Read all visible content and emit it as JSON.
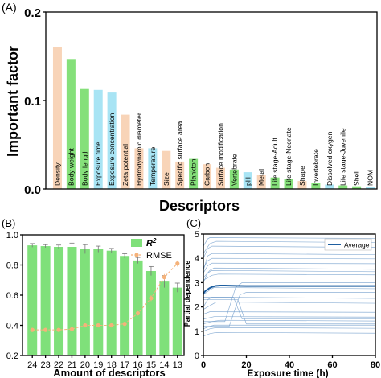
{
  "chart_data": [
    {
      "panel": "(A)",
      "type": "bar",
      "ylabel": "Important factor",
      "xlabel": "Descriptors",
      "ylim": [
        0,
        0.2
      ],
      "yticks": [
        "0.0",
        "0.1",
        "0.2"
      ],
      "categories": [
        "Density",
        "Body weight",
        "Body length",
        "Exposure time",
        "Exposure concentration",
        "Zeta potential",
        "Hydrodynamic diameter",
        "Temperature",
        "Size",
        "Specific surface area",
        "Plankton",
        "Carbon",
        "Surface modification",
        "Vertebrate",
        "pH",
        "Metal",
        "Life stage-Adult",
        "Life stage-Neonate",
        "Shape",
        "Invertebrate",
        "Dissolved oxygen",
        "Life stage-Juvenile",
        "Shell",
        "NOM"
      ],
      "values": [
        0.16,
        0.147,
        0.113,
        0.112,
        0.109,
        0.084,
        0.046,
        0.046,
        0.043,
        0.031,
        0.034,
        0.028,
        0.024,
        0.022,
        0.019,
        0.016,
        0.013,
        0.011,
        0.009,
        0.007,
        0.005,
        0.004,
        0.003,
        0.002
      ],
      "colors": [
        "#f8d4b8",
        "#85e07a",
        "#85e07a",
        "#a8e4f4",
        "#a8e4f4",
        "#f8d4b8",
        "#f8d4b8",
        "#a8e4f4",
        "#f8d4b8",
        "#f8d4b8",
        "#85e07a",
        "#f8d4b8",
        "#f8d4b8",
        "#85e07a",
        "#a8e4f4",
        "#f8d4b8",
        "#85e07a",
        "#85e07a",
        "#f8d4b8",
        "#85e07a",
        "#a8e4f4",
        "#85e07a",
        "#85e07a",
        "#a8e4f4"
      ]
    },
    {
      "panel": "(B)",
      "type": "bar",
      "xlabel": "Amount of descriptors",
      "ylabel": "",
      "ylim": [
        0.2,
        1.0
      ],
      "yticks": [
        "0.2",
        "0.4",
        "0.6",
        "0.8",
        "1.0"
      ],
      "categories": [
        "24",
        "23",
        "22",
        "21",
        "20",
        "19",
        "18",
        "17",
        "16",
        "15",
        "14",
        "13"
      ],
      "series": [
        {
          "name": "R",
          "name_sup": "2",
          "type": "bar",
          "color": "#7fe07a",
          "values": [
            0.93,
            0.925,
            0.92,
            0.92,
            0.905,
            0.905,
            0.895,
            0.86,
            0.83,
            0.76,
            0.69,
            0.65
          ],
          "errors": [
            0.012,
            0.01,
            0.012,
            0.025,
            0.03,
            0.02,
            0.015,
            0.015,
            0.02,
            0.03,
            0.04,
            0.03
          ]
        },
        {
          "name": "RMSE",
          "type": "line",
          "color": "#f5b27a",
          "values": [
            0.37,
            0.37,
            0.37,
            0.375,
            0.4,
            0.4,
            0.4,
            0.41,
            0.48,
            0.58,
            0.72,
            0.81
          ],
          "errors": [
            0.01,
            0.01,
            0.01,
            0.01,
            0.01,
            0.01,
            0.01,
            0.01,
            0.015,
            0.02,
            0.02,
            0.02
          ]
        }
      ],
      "legend": "top-right"
    },
    {
      "panel": "(C)",
      "type": "line",
      "xlabel": "Exposure time (h)",
      "ylabel": "Partial dependence",
      "xlim": [
        0,
        80
      ],
      "ylim": [
        0,
        5
      ],
      "xticks": [
        "0",
        "20",
        "40",
        "60",
        "80"
      ],
      "yticks": [
        "0",
        "1",
        "2",
        "3",
        "4",
        "5"
      ],
      "legend_label": "Average",
      "average_color": "#1f5fa0",
      "lines_color": "#7aa3cf",
      "series": [
        {
          "x": [
            0,
            3,
            5,
            80
          ],
          "y": [
            1.1,
            1.2,
            1.25,
            1.25
          ]
        },
        {
          "x": [
            0,
            4,
            8,
            80
          ],
          "y": [
            1.3,
            1.4,
            1.45,
            1.42
          ]
        },
        {
          "x": [
            0,
            3,
            6,
            80
          ],
          "y": [
            0.8,
            0.9,
            0.95,
            0.92
          ]
        },
        {
          "x": [
            0,
            5,
            10,
            80
          ],
          "y": [
            1.5,
            1.6,
            1.6,
            1.58
          ]
        },
        {
          "x": [
            0,
            3,
            5,
            80
          ],
          "y": [
            1.7,
            1.8,
            1.8,
            1.78
          ]
        },
        {
          "x": [
            0,
            2,
            4,
            80
          ],
          "y": [
            3.0,
            3.4,
            3.5,
            3.45
          ]
        },
        {
          "x": [
            0,
            3,
            5,
            80
          ],
          "y": [
            3.2,
            3.5,
            3.6,
            3.55
          ]
        },
        {
          "x": [
            0,
            2,
            4,
            80
          ],
          "y": [
            3.4,
            3.7,
            3.8,
            3.78
          ]
        },
        {
          "x": [
            0,
            2,
            4,
            80
          ],
          "y": [
            3.6,
            3.9,
            4.0,
            3.98
          ]
        },
        {
          "x": [
            0,
            2,
            4,
            80
          ],
          "y": [
            3.5,
            4.1,
            4.2,
            4.15
          ]
        },
        {
          "x": [
            0,
            3,
            5,
            80
          ],
          "y": [
            2.5,
            2.7,
            2.8,
            2.75
          ]
        },
        {
          "x": [
            0,
            2,
            4,
            80
          ],
          "y": [
            2.0,
            2.3,
            2.4,
            2.35
          ]
        },
        {
          "x": [
            0,
            4,
            6,
            80
          ],
          "y": [
            1.9,
            2.1,
            2.2,
            2.15
          ]
        },
        {
          "x": [
            0,
            2,
            4,
            80
          ],
          "y": [
            4.0,
            4.4,
            4.5,
            4.45
          ]
        },
        {
          "x": [
            0,
            3,
            6,
            80
          ],
          "y": [
            4.2,
            4.6,
            4.7,
            4.65
          ]
        },
        {
          "x": [
            0,
            2,
            3,
            80
          ],
          "y": [
            4.5,
            4.8,
            4.85,
            4.82
          ]
        },
        {
          "x": [
            0,
            10,
            15,
            18,
            80
          ],
          "y": [
            1.4,
            1.4,
            2.8,
            3.0,
            3.0
          ]
        },
        {
          "x": [
            0,
            12,
            17,
            20,
            80
          ],
          "y": [
            1.2,
            1.2,
            2.5,
            2.6,
            2.6
          ]
        },
        {
          "x": [
            0,
            14,
            18,
            80
          ],
          "y": [
            2.4,
            2.4,
            1.5,
            1.5
          ]
        },
        {
          "x": [
            0,
            16,
            20,
            80
          ],
          "y": [
            2.3,
            2.3,
            1.3,
            1.3
          ]
        },
        {
          "x": [
            0,
            3,
            6,
            80
          ],
          "y": [
            1.0,
            1.1,
            1.15,
            1.12
          ]
        },
        {
          "x": [
            0,
            4,
            7,
            80
          ],
          "y": [
            3.1,
            3.3,
            3.35,
            3.32
          ]
        }
      ],
      "average": {
        "x": [
          0,
          1,
          2,
          3,
          4,
          5,
          6,
          8,
          10,
          15,
          20,
          80
        ],
        "y": [
          2.55,
          2.66,
          2.72,
          2.78,
          2.82,
          2.85,
          2.87,
          2.88,
          2.88,
          2.87,
          2.86,
          2.86
        ]
      }
    }
  ]
}
